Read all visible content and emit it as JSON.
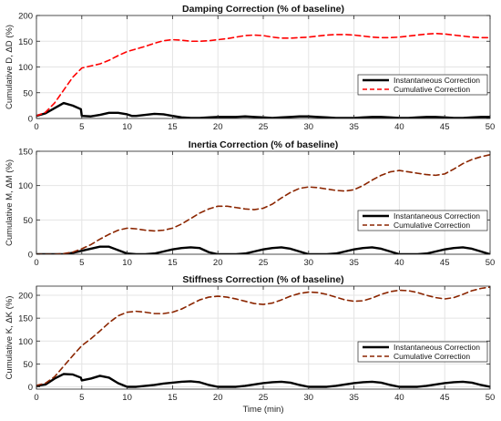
{
  "chart_data": [
    {
      "type": "line",
      "title": "Damping Correction (% of baseline)",
      "xlabel": "",
      "ylabel": "Cumulative D, ΔD (%)",
      "xlim": [
        0,
        50
      ],
      "ylim": [
        0,
        200
      ],
      "xticks": [
        "0",
        "5",
        "10",
        "15",
        "20",
        "25",
        "30",
        "35",
        "40",
        "45",
        "50"
      ],
      "yticks": [
        "0",
        "50",
        "100",
        "150",
        "200"
      ],
      "grid": true,
      "legend_position": "right",
      "series": [
        {
          "name": "Instantaneous Correction",
          "color": "#000000",
          "style": "solid",
          "x": [
            0,
            1,
            2,
            3,
            4,
            4.9,
            5,
            6,
            7,
            8,
            9,
            10,
            10.5,
            11,
            12,
            13,
            14,
            15,
            16,
            17,
            18,
            19,
            20,
            21,
            22,
            23,
            24,
            25,
            26,
            27,
            28,
            29,
            30,
            31,
            32,
            33,
            34,
            35,
            36,
            37,
            38,
            39,
            40,
            41,
            42,
            43,
            44,
            45,
            46,
            47,
            48,
            49,
            50
          ],
          "values": [
            5,
            10,
            20,
            30,
            25,
            18,
            5,
            4,
            7,
            11,
            11,
            8,
            5,
            5,
            7,
            9,
            8,
            5,
            2,
            1,
            1,
            2,
            3,
            3,
            3,
            4,
            3,
            2,
            1,
            2,
            3,
            4,
            4,
            3,
            2,
            1,
            1,
            1,
            2,
            3,
            3,
            2,
            1,
            1,
            2,
            3,
            3,
            2,
            1,
            1,
            2,
            3,
            3
          ]
        },
        {
          "name": "Cumulative Correction",
          "color": "#ff0000",
          "style": "dashed",
          "x": [
            0,
            1,
            2,
            3,
            4,
            5,
            6,
            7,
            8,
            9,
            10,
            11,
            12,
            13,
            14,
            15,
            16,
            17,
            18,
            19,
            20,
            21,
            22,
            23,
            24,
            25,
            26,
            27,
            28,
            29,
            30,
            31,
            32,
            33,
            34,
            35,
            36,
            37,
            38,
            39,
            40,
            41,
            42,
            43,
            44,
            45,
            46,
            47,
            48,
            49,
            50
          ],
          "values": [
            5,
            12,
            30,
            55,
            80,
            98,
            102,
            106,
            113,
            122,
            130,
            135,
            140,
            146,
            151,
            153,
            152,
            150,
            150,
            151,
            153,
            155,
            158,
            161,
            162,
            161,
            158,
            156,
            156,
            157,
            158,
            160,
            162,
            163,
            163,
            162,
            160,
            158,
            157,
            157,
            158,
            160,
            162,
            164,
            165,
            164,
            162,
            160,
            158,
            157,
            157
          ]
        }
      ]
    },
    {
      "type": "line",
      "title": "Inertia Correction (% of baseline)",
      "xlabel": "",
      "ylabel": "Cumulative M, ΔM (%)",
      "xlim": [
        0,
        50
      ],
      "ylim": [
        0,
        150
      ],
      "xticks": [
        "0",
        "5",
        "10",
        "15",
        "20",
        "25",
        "30",
        "35",
        "40",
        "45",
        "50"
      ],
      "yticks": [
        "0",
        "50",
        "100",
        "150"
      ],
      "grid": true,
      "legend_position": "right",
      "series": [
        {
          "name": "Instantaneous Correction",
          "color": "#000000",
          "style": "solid",
          "x": [
            0,
            1,
            2,
            3,
            4,
            5,
            6,
            7,
            8,
            9,
            10,
            11,
            12,
            13,
            14,
            15,
            16,
            17,
            18,
            19,
            20,
            21,
            22,
            23,
            24,
            25,
            26,
            27,
            28,
            29,
            30,
            31,
            32,
            33,
            34,
            35,
            36,
            37,
            38,
            39,
            40,
            41,
            42,
            43,
            44,
            45,
            46,
            47,
            48,
            49,
            50
          ],
          "values": [
            0,
            0,
            0,
            0,
            2,
            5,
            8,
            11,
            11,
            6,
            1,
            0,
            0,
            1,
            4,
            7,
            9,
            10,
            9,
            3,
            0,
            0,
            0,
            1,
            4,
            7,
            9,
            10,
            8,
            4,
            0,
            0,
            0,
            1,
            4,
            7,
            9,
            10,
            8,
            4,
            0,
            0,
            0,
            1,
            4,
            7,
            9,
            10,
            8,
            4,
            0
          ]
        },
        {
          "name": "Cumulative Correction",
          "color": "#8b2500",
          "style": "dashed",
          "x": [
            0,
            1,
            2,
            3,
            4,
            5,
            6,
            7,
            8,
            9,
            10,
            11,
            12,
            13,
            14,
            15,
            16,
            17,
            18,
            19,
            20,
            21,
            22,
            23,
            24,
            25,
            26,
            27,
            28,
            29,
            30,
            31,
            32,
            33,
            34,
            35,
            36,
            37,
            38,
            39,
            40,
            41,
            42,
            43,
            44,
            45,
            46,
            47,
            48,
            49,
            50
          ],
          "values": [
            0,
            0,
            0,
            1,
            3,
            8,
            14,
            22,
            29,
            35,
            38,
            37,
            35,
            34,
            35,
            38,
            44,
            52,
            60,
            66,
            70,
            70,
            68,
            66,
            65,
            67,
            73,
            82,
            90,
            96,
            98,
            97,
            95,
            93,
            92,
            94,
            100,
            108,
            115,
            120,
            122,
            120,
            118,
            116,
            115,
            117,
            124,
            132,
            138,
            142,
            145
          ]
        }
      ]
    },
    {
      "type": "line",
      "title": "Stiffness Correction (% of baseline)",
      "xlabel": "Time (min)",
      "ylabel": "Cumulative K, ΔK (%)",
      "xlim": [
        0,
        50
      ],
      "ylim": [
        -5,
        220
      ],
      "xticks": [
        "0",
        "5",
        "10",
        "15",
        "20",
        "25",
        "30",
        "35",
        "40",
        "45",
        "50"
      ],
      "yticks": [
        "0",
        "50",
        "100",
        "150",
        "200"
      ],
      "grid": true,
      "legend_position": "right",
      "series": [
        {
          "name": "Instantaneous Correction",
          "color": "#000000",
          "style": "solid",
          "x": [
            0,
            1,
            2,
            3,
            4,
            4.9,
            5,
            6,
            7,
            8,
            9,
            10,
            11,
            12,
            13,
            14,
            15,
            16,
            17,
            18,
            19,
            20,
            21,
            22,
            23,
            24,
            25,
            26,
            27,
            28,
            29,
            30,
            31,
            32,
            33,
            34,
            35,
            36,
            37,
            38,
            39,
            40,
            41,
            42,
            43,
            44,
            45,
            46,
            47,
            48,
            49,
            50
          ],
          "values": [
            2,
            5,
            18,
            28,
            27,
            20,
            14,
            18,
            24,
            20,
            8,
            0,
            0,
            2,
            4,
            7,
            9,
            11,
            12,
            10,
            4,
            0,
            0,
            0,
            2,
            5,
            8,
            10,
            11,
            9,
            4,
            0,
            0,
            0,
            2,
            5,
            8,
            10,
            11,
            9,
            4,
            0,
            0,
            0,
            2,
            5,
            8,
            10,
            11,
            9,
            4,
            0
          ]
        },
        {
          "name": "Cumulative Correction",
          "color": "#8b2500",
          "style": "dashed",
          "x": [
            0,
            1,
            2,
            3,
            4,
            5,
            6,
            7,
            8,
            9,
            10,
            11,
            12,
            13,
            14,
            15,
            16,
            17,
            18,
            19,
            20,
            21,
            22,
            23,
            24,
            25,
            26,
            27,
            28,
            29,
            30,
            31,
            32,
            33,
            34,
            35,
            36,
            37,
            38,
            39,
            40,
            41,
            42,
            43,
            44,
            45,
            46,
            47,
            48,
            49,
            50
          ],
          "values": [
            3,
            8,
            22,
            45,
            68,
            90,
            105,
            122,
            140,
            155,
            163,
            165,
            163,
            160,
            160,
            163,
            170,
            180,
            190,
            196,
            198,
            196,
            192,
            187,
            182,
            180,
            183,
            190,
            198,
            204,
            207,
            206,
            202,
            196,
            190,
            187,
            188,
            194,
            202,
            208,
            211,
            210,
            206,
            200,
            195,
            192,
            195,
            202,
            210,
            215,
            218
          ]
        }
      ]
    }
  ]
}
